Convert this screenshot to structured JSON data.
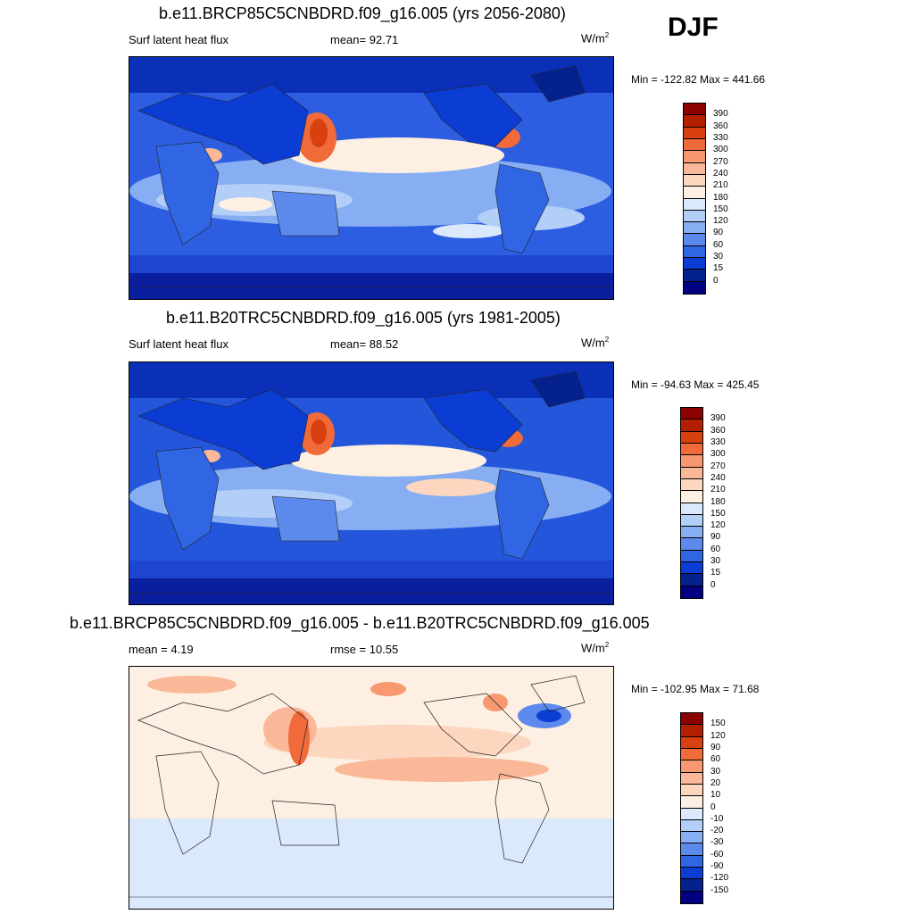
{
  "season": "DJF",
  "units_base": "W/m",
  "units_exp": "2",
  "panels": [
    {
      "title": "b.e11.BRCP85C5CNBDRD.f09_g16.005 (yrs 2056-2080)",
      "variable": "Surf latent heat flux",
      "stat_label": "mean=",
      "stat_value": "92.71",
      "minmax": "Min = -122.82 Max = 441.66"
    },
    {
      "title": "b.e11.B20TRC5CNBDRD.f09_g16.005 (yrs 1981-2005)",
      "variable": "Surf latent heat flux",
      "stat_label": "mean=",
      "stat_value": "88.52",
      "minmax": "Min = -94.63 Max = 425.45"
    },
    {
      "title": "b.e11.BRCP85C5CNBDRD.f09_g16.005 - b.e11.B20TRC5CNBDRD.f09_g16.005",
      "variable": "mean =   4.19",
      "stat_label": "rmse =",
      "stat_value": "10.55",
      "minmax": "Min = -102.95 Max =  71.68"
    }
  ],
  "legends": {
    "abs": {
      "labels": [
        "390",
        "360",
        "330",
        "300",
        "270",
        "240",
        "210",
        "180",
        "150",
        "120",
        "90",
        "60",
        "30",
        "15",
        "0"
      ],
      "colors": [
        "#8b0000",
        "#b22000",
        "#d84010",
        "#f06a3a",
        "#f89870",
        "#fbb898",
        "#fdd6c0",
        "#fdf0e2",
        "#dbe9fc",
        "#b3cff8",
        "#87aef2",
        "#5c8aec",
        "#3066e4",
        "#0b3cd4",
        "#05218e",
        "#000080"
      ]
    },
    "diff": {
      "labels": [
        "150",
        "120",
        "90",
        "60",
        "30",
        "20",
        "10",
        "0",
        "-10",
        "-20",
        "-30",
        "-60",
        "-90",
        "-120",
        "-150"
      ],
      "colors": [
        "#8b0000",
        "#b22000",
        "#d84010",
        "#f06a3a",
        "#f89870",
        "#fbb898",
        "#fdd6c0",
        "#fdf0e2",
        "#dbe9fc",
        "#b3cff8",
        "#87aef2",
        "#5c8aec",
        "#3066e4",
        "#0b3cd4",
        "#05218e",
        "#000080"
      ]
    }
  }
}
